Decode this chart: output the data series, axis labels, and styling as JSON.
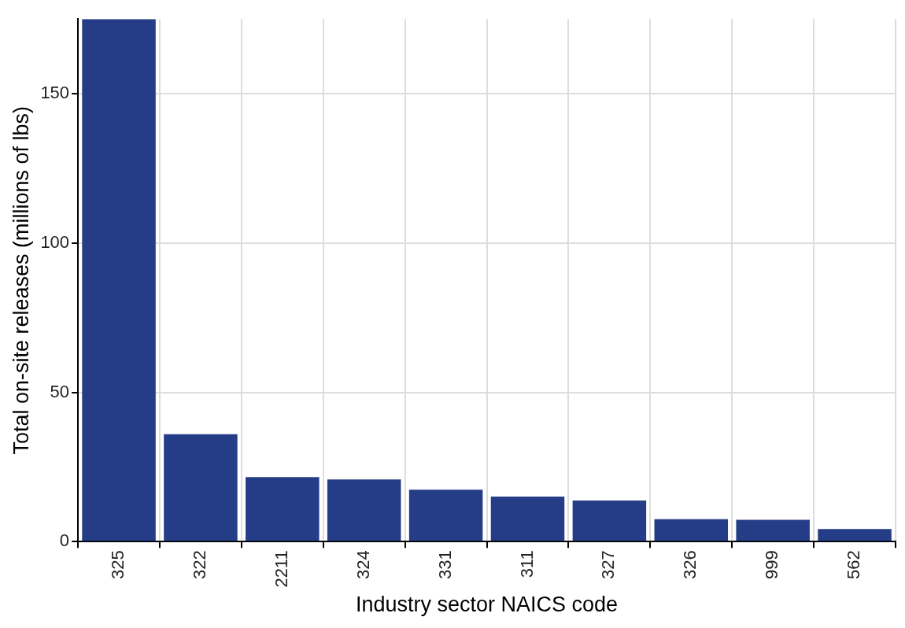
{
  "chart_data": {
    "type": "bar",
    "xlabel": "Industry sector NAICS code",
    "ylabel": "Total on-site releases (millions of lbs)",
    "categories": [
      "325",
      "322",
      "2211",
      "324",
      "331",
      "311",
      "327",
      "326",
      "999",
      "562"
    ],
    "values": [
      175,
      36,
      21.6,
      20.8,
      17.4,
      15.1,
      13.8,
      7.5,
      7.3,
      4.2
    ],
    "color": "#253c87",
    "ylim": [
      0,
      175
    ],
    "yticks": [
      0,
      50,
      100,
      150
    ],
    "grid": true
  }
}
